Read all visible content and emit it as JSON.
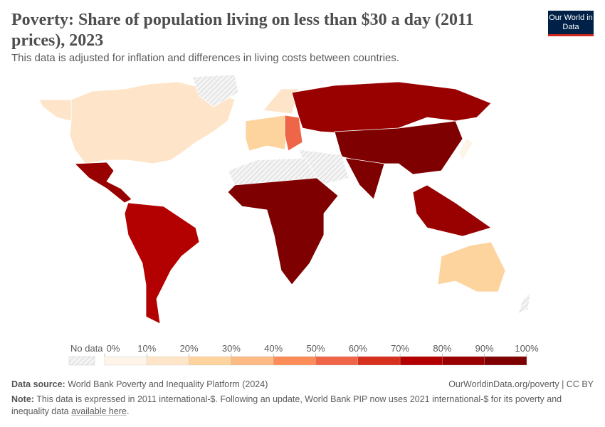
{
  "header": {
    "title": "Poverty: Share of population living on less than $30 a day (2011 prices), 2023",
    "subtitle": "This data is adjusted for inflation and differences in living costs between countries.",
    "logo_text": "Our World in Data"
  },
  "chart_data": {
    "type": "choropleth",
    "unit": "%",
    "legend": {
      "no_data_label": "No data",
      "ticks": [
        "0%",
        "10%",
        "20%",
        "30%",
        "40%",
        "50%",
        "60%",
        "70%",
        "80%",
        "90%",
        "100%"
      ],
      "bins": [
        [
          0,
          10
        ],
        [
          10,
          20
        ],
        [
          20,
          30
        ],
        [
          30,
          40
        ],
        [
          40,
          50
        ],
        [
          50,
          60
        ],
        [
          60,
          70
        ],
        [
          70,
          80
        ],
        [
          80,
          90
        ],
        [
          90,
          100
        ]
      ],
      "colors": [
        "#fef4e8",
        "#fee5c9",
        "#fdd49e",
        "#fcbb84",
        "#fc8d59",
        "#ef6548",
        "#d7301f",
        "#b30000",
        "#990000",
        "#7f0000"
      ],
      "no_data_color": "#e8e8e8"
    },
    "regions": [
      {
        "name": "United States & Canada",
        "value": 15
      },
      {
        "name": "Alaska",
        "value": 15
      },
      {
        "name": "Greenland",
        "value": null
      },
      {
        "name": "Mexico & Central America",
        "value": 88
      },
      {
        "name": "South America",
        "value": 80
      },
      {
        "name": "Western Europe",
        "value": 25
      },
      {
        "name": "Scandinavia",
        "value": 12
      },
      {
        "name": "Eastern Europe",
        "value": 55
      },
      {
        "name": "Russia & Central Asia",
        "value": 85
      },
      {
        "name": "China & East Asia",
        "value": 92
      },
      {
        "name": "South Asia",
        "value": 98
      },
      {
        "name": "Middle East",
        "value": null
      },
      {
        "name": "North Africa",
        "value": null
      },
      {
        "name": "Sub-Saharan Africa",
        "value": 95
      },
      {
        "name": "Southeast Asia",
        "value": 88
      },
      {
        "name": "Japan",
        "value": 8
      },
      {
        "name": "Australia",
        "value": 22
      },
      {
        "name": "New Zealand",
        "value": null
      }
    ]
  },
  "footer": {
    "source_label": "Data source:",
    "source": "World Bank Poverty and Inequality Platform (2024)",
    "url": "OurWorldinData.org/poverty | CC BY",
    "note_label": "Note:",
    "note": "This data is expressed in 2011 international-$. Following an update, World Bank PIP now uses 2021 international-$ for its poverty and inequality data ",
    "note_link": "available here",
    "note_end": "."
  }
}
